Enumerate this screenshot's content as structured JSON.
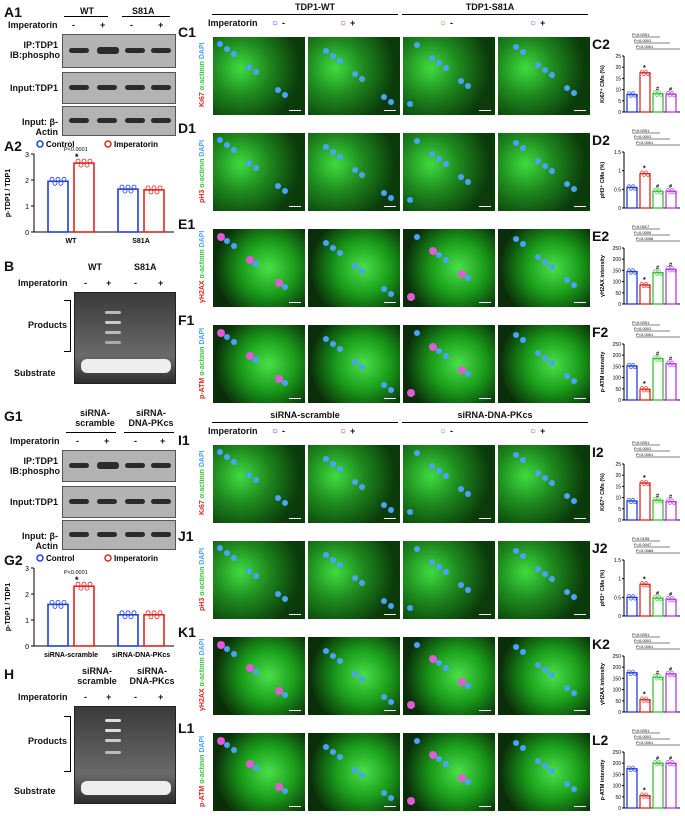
{
  "panel_labels": {
    "A1": "A1",
    "A2": "A2",
    "B": "B",
    "C1": "C1",
    "D1": "D1",
    "E1": "E1",
    "F1": "F1",
    "C2": "C2",
    "D2": "D2",
    "E2": "E2",
    "F2": "F2",
    "G1": "G1",
    "G2": "G2",
    "H": "H",
    "I1": "I1",
    "J1": "J1",
    "K1": "K1",
    "L1": "L1",
    "I2": "I2",
    "J2": "J2",
    "K2": "K2",
    "L2": "L2"
  },
  "top": {
    "group_wt": "WT",
    "group_s81a": "S81A",
    "imperatorin": "Imperatorin",
    "minus": "-",
    "plus": "+",
    "blot_labels": [
      "IP:TDP1\nIB:phospho",
      "Input:TDP1",
      "Input: β-Actin"
    ],
    "ip_line1": "IP:TDP1",
    "ip_line2": "IB:phospho",
    "input_tdp1": "Input:TDP1",
    "input_actin": "Input: β-Actin",
    "legend_control": "Control",
    "legend_imperatorin": "Imperatorin",
    "a2_ylabel": "p-TDP1 / TDP1",
    "a2_p": "P<0.0001",
    "a2_x": [
      "WT",
      "S81A"
    ],
    "products": "Products",
    "substrate": "Substrate",
    "img_group1": "TDP1-WT",
    "img_group2": "TDP1-S81A"
  },
  "bottom": {
    "group1": "siRNA-\nscramble",
    "group2": "siRNA-\nDNA-PKcs",
    "group1_l1": "siRNA-",
    "group1_l2": "scramble",
    "group2_l1": "siRNA-",
    "group2_l2": "DNA-PKcs",
    "g2_p": "P<0.0001",
    "g2_x": [
      "siRNA-scramble",
      "siRNA-DNA-PKcs"
    ],
    "img_group1": "siRNA-scramble",
    "img_group2": "siRNA-DNA-PKcs"
  },
  "row_labels": {
    "ki67": [
      "Ki67",
      "α-actinin",
      "DAPI"
    ],
    "ph3": [
      "pH3",
      "α-actinin",
      "DAPI"
    ],
    "h2ax": [
      "γH2AX",
      "α-actinin",
      "DAPI"
    ],
    "patm": [
      "p-ATM",
      "α-actinin",
      "DAPI"
    ]
  },
  "colors": {
    "control": "#1f3fe0",
    "imperatorin": "#e0261f",
    "s_control": "#35c435",
    "s_imperatorin": "#b63ae0"
  },
  "chart_data": [
    {
      "id": "A2",
      "type": "bar",
      "ylabel": "p-TDP1 / TDP1",
      "ylim": [
        0,
        3
      ],
      "yticks": [
        0,
        1,
        2,
        3
      ],
      "categories": [
        "WT",
        "S81A"
      ],
      "series": [
        {
          "name": "Control",
          "values": [
            1.95,
            1.65
          ]
        },
        {
          "name": "Imperatorin",
          "values": [
            2.65,
            1.62
          ]
        }
      ]
    },
    {
      "id": "C2",
      "type": "bar",
      "ylabel": "Ki67⁺ CMs (%)",
      "ylim": [
        0,
        25
      ],
      "yticks": [
        0,
        5,
        10,
        15,
        20,
        25
      ],
      "values": [
        7.8,
        17.5,
        8.2,
        8.0
      ],
      "p": [
        "P<0.0001",
        "P<0.0001",
        "P<0.0001"
      ]
    },
    {
      "id": "D2",
      "type": "bar",
      "ylabel": "pH3⁺ CMs (%)",
      "ylim": [
        0,
        1.5
      ],
      "yticks": [
        0.0,
        0.5,
        1.0,
        1.5
      ],
      "values": [
        0.55,
        0.92,
        0.45,
        0.45
      ],
      "p": [
        "P<0.0001",
        "P<0.0001",
        "P<0.0001"
      ]
    },
    {
      "id": "E2",
      "type": "bar",
      "ylabel": "γH2AX intensity",
      "ylim": [
        0,
        250
      ],
      "yticks": [
        0,
        50,
        100,
        150,
        200,
        250
      ],
      "values": [
        145,
        85,
        140,
        155
      ],
      "p": [
        "P=0.0017",
        "P=0.0009",
        "P=0.0006"
      ]
    },
    {
      "id": "F2",
      "type": "bar",
      "ylabel": "p-ATM intensity",
      "ylim": [
        0,
        250
      ],
      "yticks": [
        0,
        50,
        100,
        150,
        200,
        250
      ],
      "values": [
        152,
        48,
        185,
        162
      ],
      "p": [
        "P<0.0001",
        "P<0.0001",
        "P<0.0001"
      ]
    },
    {
      "id": "G2",
      "type": "bar",
      "ylabel": "p-TDP1 / TDP1",
      "ylim": [
        0,
        3
      ],
      "yticks": [
        0,
        1,
        2,
        3
      ],
      "categories": [
        "siRNA-scramble",
        "siRNA-DNA-PKcs"
      ],
      "series": [
        {
          "name": "Control",
          "values": [
            1.6,
            1.2
          ]
        },
        {
          "name": "Imperatorin",
          "values": [
            2.3,
            1.2
          ]
        }
      ]
    },
    {
      "id": "I2",
      "type": "bar",
      "ylabel": "Ki67⁺ CMs (%)",
      "ylim": [
        0,
        25
      ],
      "yticks": [
        0,
        5,
        10,
        15,
        20,
        25
      ],
      "values": [
        8.5,
        16.5,
        8.8,
        8.2
      ],
      "p": [
        "P<0.0001",
        "P<0.0001",
        "P<0.0001"
      ]
    },
    {
      "id": "J2",
      "type": "bar",
      "ylabel": "pH3⁺ CMs (%)",
      "ylim": [
        0,
        1.5
      ],
      "yticks": [
        0.0,
        0.5,
        1.0,
        1.5
      ],
      "values": [
        0.5,
        0.85,
        0.48,
        0.45
      ],
      "p": [
        "P=0.0155",
        "P=0.0047",
        "P=0.0084"
      ]
    },
    {
      "id": "K2",
      "type": "bar",
      "ylabel": "γH2AX intensity",
      "ylim": [
        0,
        250
      ],
      "yticks": [
        0,
        50,
        100,
        150,
        200,
        250
      ],
      "values": [
        175,
        55,
        155,
        170
      ],
      "p": [
        "P<0.0001",
        "P<0.0001",
        "P<0.0001"
      ]
    },
    {
      "id": "L2",
      "type": "bar",
      "ylabel": "p-ATM intensity",
      "ylim": [
        0,
        250
      ],
      "yticks": [
        0,
        50,
        100,
        150,
        200,
        250
      ],
      "values": [
        175,
        55,
        200,
        200
      ],
      "p": [
        "P<0.0001",
        "P<0.0001",
        "P<0.0001"
      ]
    }
  ]
}
